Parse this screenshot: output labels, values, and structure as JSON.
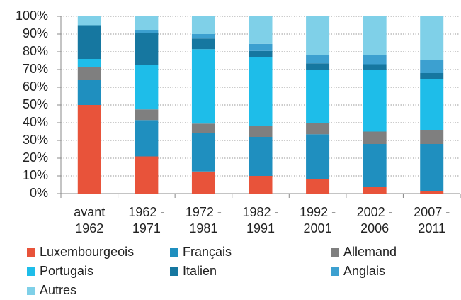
{
  "chart_data": {
    "type": "stacked_bar",
    "categories": [
      "avant 1962",
      "1962 - 1971",
      "1972 - 1981",
      "1982 - 1991",
      "1992 - 2001",
      "2002 - 2006",
      "2007 - 2011"
    ],
    "series": [
      {
        "name": "Luxembourgeois",
        "color": "#e8533a",
        "values": [
          50,
          21,
          12.5,
          10,
          8,
          4,
          1.5
        ]
      },
      {
        "name": "Français",
        "color": "#1f8fbf",
        "values": [
          14,
          20.5,
          21.5,
          22,
          25.5,
          24,
          26.5
        ]
      },
      {
        "name": "Allemand",
        "color": "#7f7f7f",
        "values": [
          7.5,
          6,
          5.5,
          6,
          6.5,
          7,
          8
        ]
      },
      {
        "name": "Portugais",
        "color": "#1ebde9",
        "values": [
          4.5,
          25,
          42,
          39,
          30,
          35,
          28.5
        ]
      },
      {
        "name": "Italien",
        "color": "#1677a0",
        "values": [
          19,
          18,
          6,
          3.5,
          3.5,
          3,
          3.5
        ]
      },
      {
        "name": "Anglais",
        "color": "#3ca0d0",
        "values": [
          0,
          1.5,
          2.5,
          4,
          4.5,
          5,
          7.5
        ]
      },
      {
        "name": "Autres",
        "color": "#7fd0e8",
        "values": [
          5,
          8,
          10,
          15.5,
          22,
          22,
          24.5
        ]
      }
    ],
    "ylim": [
      0,
      100
    ],
    "yticks": [
      {
        "value": 0,
        "label": "0%"
      },
      {
        "value": 10,
        "label": "10%"
      },
      {
        "value": 20,
        "label": "20%"
      },
      {
        "value": 30,
        "label": "30%"
      },
      {
        "value": 40,
        "label": "40%"
      },
      {
        "value": 50,
        "label": "50%"
      },
      {
        "value": 60,
        "label": "60%"
      },
      {
        "value": 70,
        "label": "70%"
      },
      {
        "value": 80,
        "label": "80%"
      },
      {
        "value": 90,
        "label": "90%"
      },
      {
        "value": 100,
        "label": "100%"
      }
    ],
    "grid": true
  }
}
